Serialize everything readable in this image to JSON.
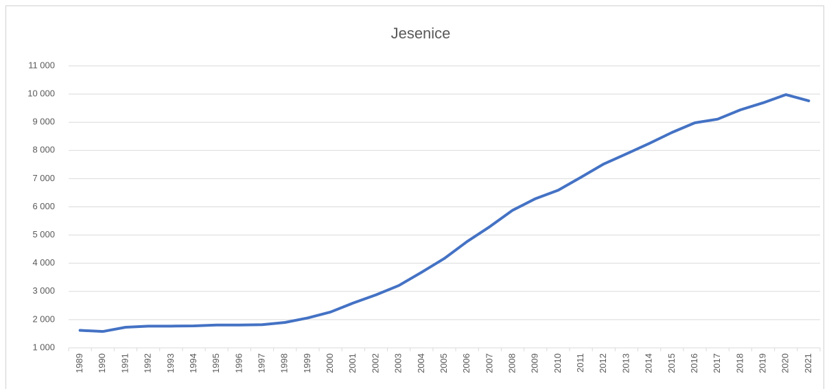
{
  "chart_data": {
    "type": "line",
    "title": "Jesenice",
    "categories": [
      "1989",
      "1990",
      "1991",
      "1992",
      "1993",
      "1994",
      "1995",
      "1996",
      "1997",
      "1998",
      "1999",
      "2000",
      "2001",
      "2002",
      "2003",
      "2004",
      "2005",
      "2006",
      "2007",
      "2008",
      "2009",
      "2010",
      "2011",
      "2012",
      "2013",
      "2014",
      "2015",
      "2016",
      "2017",
      "2018",
      "2019",
      "2020",
      "2021"
    ],
    "series": [
      {
        "name": "Jesenice",
        "color": "#4472c4",
        "values": [
          1620,
          1580,
          1730,
          1770,
          1770,
          1780,
          1810,
          1810,
          1820,
          1900,
          2060,
          2270,
          2590,
          2880,
          3210,
          3680,
          4170,
          4770,
          5300,
          5880,
          6290,
          6590,
          7050,
          7520,
          7880,
          8250,
          8640,
          8980,
          9110,
          9440,
          9690,
          9980,
          9760
        ]
      }
    ],
    "ylim": [
      1000,
      11000
    ],
    "yticks": [
      {
        "value": 1000,
        "label": "1 000"
      },
      {
        "value": 2000,
        "label": "2 000"
      },
      {
        "value": 3000,
        "label": "3 000"
      },
      {
        "value": 4000,
        "label": "4 000"
      },
      {
        "value": 5000,
        "label": "5 000"
      },
      {
        "value": 6000,
        "label": "6 000"
      },
      {
        "value": 7000,
        "label": "7 000"
      },
      {
        "value": 8000,
        "label": "8 000"
      },
      {
        "value": 9000,
        "label": "9 000"
      },
      {
        "value": 10000,
        "label": "10 000"
      },
      {
        "value": 11000,
        "label": "11 000"
      }
    ],
    "grid": true
  }
}
